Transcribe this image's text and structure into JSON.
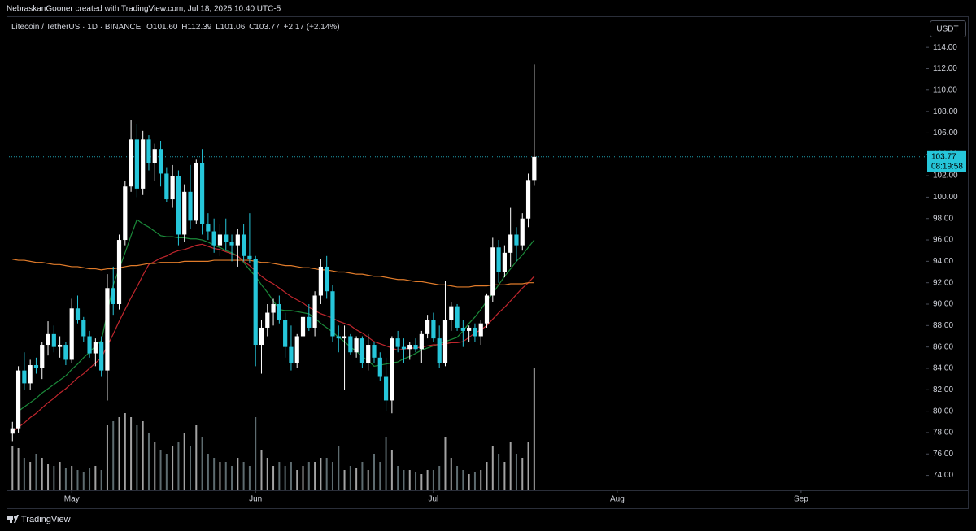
{
  "attribution": "NebraskanGooner created with TradingView.com, Jul 18, 2025 10:40 UTC-5",
  "legend": {
    "symbol": "Litecoin / TetherUS · 1D · BINANCE",
    "o_label": "O",
    "o": "101.60",
    "h_label": "H",
    "h": "112.39",
    "l_label": "L",
    "l": "101.06",
    "c_label": "C",
    "c": "103.77",
    "change": "+2.17 (+2.14%)"
  },
  "currency": "USDT",
  "countdown": "08:19:58",
  "brand": "TradingView",
  "chart_data": {
    "type": "candlestick",
    "up_color": "#ffffff",
    "down_color": "#26c6da",
    "xlim": [
      "2025-04-20",
      "2025-09-22"
    ],
    "xticks": [
      {
        "value": "2025-05-01",
        "label": "May"
      },
      {
        "value": "2025-06-01",
        "label": "Jun"
      },
      {
        "value": "2025-07-01",
        "label": "Jul"
      },
      {
        "value": "2025-08-01",
        "label": "Aug"
      },
      {
        "value": "2025-09-01",
        "label": "Sep"
      }
    ],
    "ylim": [
      72.6,
      116.9
    ],
    "yticks": [
      {
        "value": 74,
        "label": "74.00"
      },
      {
        "value": 76,
        "label": "76.00"
      },
      {
        "value": 78,
        "label": "78.00"
      },
      {
        "value": 80,
        "label": "80.00"
      },
      {
        "value": 82,
        "label": "82.00"
      },
      {
        "value": 84,
        "label": "84.00"
      },
      {
        "value": 86,
        "label": "86.00"
      },
      {
        "value": 88,
        "label": "88.00"
      },
      {
        "value": 90,
        "label": "90.00"
      },
      {
        "value": 92,
        "label": "92.00"
      },
      {
        "value": 94,
        "label": "94.00"
      },
      {
        "value": 96,
        "label": "96.00"
      },
      {
        "value": 98,
        "label": "98.00"
      },
      {
        "value": 100,
        "label": "100.00"
      },
      {
        "value": 102,
        "label": "102.00"
      },
      {
        "value": 104,
        "label": "104.00"
      },
      {
        "value": 106,
        "label": "106.00"
      },
      {
        "value": 108,
        "label": "108.00"
      },
      {
        "value": 110,
        "label": "110.00"
      },
      {
        "value": 112,
        "label": "112.00"
      },
      {
        "value": 114,
        "label": "114.00"
      }
    ],
    "grid": false,
    "x": [
      "2025-04-21",
      "2025-04-22",
      "2025-04-23",
      "2025-04-24",
      "2025-04-25",
      "2025-04-26",
      "2025-04-27",
      "2025-04-28",
      "2025-04-29",
      "2025-04-30",
      "2025-05-01",
      "2025-05-02",
      "2025-05-03",
      "2025-05-04",
      "2025-05-05",
      "2025-05-06",
      "2025-05-07",
      "2025-05-08",
      "2025-05-09",
      "2025-05-10",
      "2025-05-11",
      "2025-05-12",
      "2025-05-13",
      "2025-05-14",
      "2025-05-15",
      "2025-05-16",
      "2025-05-17",
      "2025-05-18",
      "2025-05-19",
      "2025-05-20",
      "2025-05-21",
      "2025-05-22",
      "2025-05-23",
      "2025-05-24",
      "2025-05-25",
      "2025-05-26",
      "2025-05-27",
      "2025-05-28",
      "2025-05-29",
      "2025-05-30",
      "2025-05-31",
      "2025-06-01",
      "2025-06-02",
      "2025-06-03",
      "2025-06-04",
      "2025-06-05",
      "2025-06-06",
      "2025-06-07",
      "2025-06-08",
      "2025-06-09",
      "2025-06-10",
      "2025-06-11",
      "2025-06-12",
      "2025-06-13",
      "2025-06-14",
      "2025-06-15",
      "2025-06-16",
      "2025-06-17",
      "2025-06-18",
      "2025-06-19",
      "2025-06-20",
      "2025-06-21",
      "2025-06-22",
      "2025-06-23",
      "2025-06-24",
      "2025-06-25",
      "2025-06-26",
      "2025-06-27",
      "2025-06-28",
      "2025-06-29",
      "2025-06-30",
      "2025-07-01",
      "2025-07-02",
      "2025-07-03",
      "2025-07-04",
      "2025-07-05",
      "2025-07-06",
      "2025-07-07",
      "2025-07-08",
      "2025-07-09",
      "2025-07-10",
      "2025-07-11",
      "2025-07-12",
      "2025-07-13",
      "2025-07-14",
      "2025-07-15",
      "2025-07-16",
      "2025-07-17",
      "2025-07-18"
    ],
    "open": [
      77.9,
      78.4,
      83.8,
      82.6,
      84.3,
      84.0,
      86.2,
      87.2,
      86.0,
      86.2,
      84.8,
      89.6,
      88.5,
      87.0,
      85.4,
      86.5,
      83.8,
      91.5,
      90.0,
      96.0,
      101.0,
      105.4,
      100.8,
      105.4,
      103.2,
      104.5,
      102.2,
      99.8,
      102.0,
      96.5,
      100.5,
      97.8,
      103.2,
      97.5,
      96.8,
      95.5,
      96.5,
      95.8,
      95.5,
      96.5,
      94.5,
      94.2,
      86.2,
      87.8,
      89.2,
      90.0,
      88.5,
      86.0,
      84.5,
      87.0,
      88.8,
      87.8,
      90.8,
      93.5,
      91.2,
      87.0,
      86.8,
      87.0,
      85.5,
      86.8,
      84.5,
      86.2,
      85.0,
      83.2,
      81.0,
      86.8,
      86.0,
      85.8,
      86.2,
      85.8,
      87.2,
      88.5,
      86.8,
      84.5,
      88.5,
      89.8,
      87.8,
      87.5,
      87.8,
      87.0,
      88.2,
      90.8,
      95.3,
      93.0,
      94.8,
      96.5,
      95.5,
      98.0,
      101.6
    ],
    "high": [
      79.0,
      84.2,
      85.5,
      84.8,
      85.0,
      86.5,
      88.4,
      88.0,
      87.0,
      86.5,
      90.5,
      90.8,
      88.8,
      87.5,
      86.8,
      87.0,
      92.8,
      93.5,
      96.5,
      101.5,
      107.2,
      106.8,
      106.2,
      105.8,
      105.0,
      105.2,
      102.8,
      103.0,
      102.5,
      101.2,
      103.0,
      103.5,
      104.5,
      98.5,
      98.0,
      97.5,
      98.0,
      96.5,
      97.0,
      97.5,
      98.5,
      94.5,
      88.5,
      90.0,
      90.5,
      90.8,
      89.2,
      88.0,
      87.2,
      89.0,
      90.0,
      91.2,
      94.2,
      94.5,
      91.8,
      88.0,
      88.0,
      87.2,
      87.0,
      87.0,
      87.2,
      86.5,
      85.5,
      85.0,
      87.0,
      87.5,
      86.8,
      86.5,
      86.8,
      87.5,
      89.0,
      89.2,
      88.0,
      92.2,
      90.2,
      90.0,
      88.5,
      88.0,
      88.2,
      88.5,
      91.0,
      96.2,
      96.0,
      95.5,
      99.0,
      97.2,
      98.5,
      102.2,
      112.39
    ],
    "low": [
      77.2,
      78.0,
      82.0,
      82.0,
      83.5,
      83.0,
      85.2,
      85.5,
      85.0,
      84.3,
      84.5,
      88.2,
      86.5,
      85.0,
      84.2,
      83.2,
      81.0,
      89.0,
      89.5,
      95.5,
      100.5,
      100.0,
      100.2,
      102.5,
      101.5,
      101.0,
      99.5,
      99.0,
      95.5,
      95.8,
      97.0,
      97.5,
      96.5,
      96.0,
      94.8,
      94.5,
      95.0,
      94.0,
      93.5,
      94.0,
      93.8,
      84.2,
      83.5,
      87.0,
      88.0,
      88.2,
      85.0,
      83.8,
      84.0,
      86.8,
      87.5,
      87.0,
      90.0,
      90.5,
      86.5,
      85.5,
      82.0,
      85.3,
      85.0,
      84.0,
      83.8,
      84.5,
      82.8,
      80.0,
      79.8,
      85.5,
      84.5,
      84.8,
      85.5,
      84.5,
      86.8,
      86.5,
      84.0,
      84.2,
      87.5,
      87.5,
      86.0,
      86.5,
      86.5,
      86.2,
      87.8,
      90.2,
      92.0,
      92.5,
      93.5,
      94.0,
      95.0,
      97.2,
      101.06
    ],
    "close": [
      78.4,
      83.8,
      82.6,
      84.3,
      84.0,
      86.2,
      87.2,
      86.0,
      86.2,
      84.8,
      89.6,
      88.5,
      87.0,
      85.4,
      86.5,
      83.8,
      91.5,
      90.0,
      96.0,
      101.0,
      105.4,
      100.8,
      105.4,
      103.2,
      104.5,
      102.2,
      99.8,
      102.0,
      96.5,
      100.5,
      97.8,
      103.2,
      97.5,
      96.8,
      95.5,
      96.5,
      95.8,
      95.5,
      96.5,
      94.5,
      94.2,
      86.2,
      87.8,
      89.2,
      90.0,
      88.5,
      86.0,
      84.5,
      87.0,
      88.8,
      87.8,
      90.8,
      93.5,
      91.2,
      87.0,
      86.8,
      87.0,
      85.5,
      86.8,
      84.5,
      86.2,
      85.0,
      83.2,
      81.0,
      86.8,
      86.0,
      85.8,
      86.2,
      85.8,
      87.2,
      88.5,
      86.8,
      84.5,
      88.5,
      89.8,
      87.8,
      87.5,
      87.8,
      87.0,
      88.2,
      90.8,
      95.3,
      93.0,
      94.8,
      96.5,
      95.5,
      98.0,
      101.6,
      103.77
    ],
    "volume": [
      5.5,
      5.2,
      4.0,
      3.5,
      4.5,
      4.0,
      3.2,
      3.0,
      3.5,
      2.8,
      3.0,
      2.5,
      2.2,
      2.8,
      3.0,
      2.5,
      8.0,
      8.5,
      9.0,
      9.5,
      9.0,
      8.0,
      8.5,
      7.0,
      6.0,
      5.0,
      4.5,
      5.5,
      6.0,
      7.0,
      5.5,
      8.0,
      6.5,
      4.5,
      4.0,
      3.5,
      3.5,
      3.0,
      4.0,
      3.5,
      3.0,
      9.0,
      5.0,
      4.0,
      3.0,
      3.5,
      3.0,
      3.5,
      2.5,
      3.0,
      3.5,
      3.5,
      4.0,
      4.0,
      3.5,
      5.5,
      2.5,
      3.0,
      2.8,
      3.5,
      2.5,
      4.5,
      3.5,
      6.5,
      5.0,
      3.0,
      2.5,
      2.5,
      2.2,
      2.0,
      2.5,
      2.5,
      3.0,
      6.5,
      4.0,
      3.0,
      2.5,
      2.0,
      2.2,
      2.5,
      3.5,
      5.5,
      4.5,
      3.5,
      6.0,
      4.5,
      4.0,
      6.0,
      15.0
    ],
    "moving_averages": [
      {
        "color": "#1b8a3a",
        "values": [
          null,
          80.0,
          80.4,
          80.8,
          81.2,
          81.7,
          82.1,
          82.5,
          82.9,
          83.3,
          83.9,
          84.4,
          85.0,
          85.5,
          86.1,
          86.6,
          89.2,
          91.8,
          93.3,
          94.8,
          96.4,
          97.9,
          97.5,
          97.2,
          96.8,
          96.4,
          96.3,
          96.3,
          96.2,
          96.2,
          96.1,
          96.1,
          96.0,
          95.8,
          95.5,
          95.3,
          95.0,
          94.8,
          94.5,
          93.9,
          93.2,
          92.6,
          91.8,
          91.1,
          90.3,
          89.5,
          89.4,
          89.4,
          89.3,
          89.2,
          89.1,
          88.7,
          88.2,
          87.8,
          87.4,
          86.9,
          86.5,
          86.0,
          85.6,
          85.1,
          84.7,
          84.2,
          84.3,
          84.4,
          84.5,
          84.6,
          84.9,
          85.1,
          85.4,
          85.7,
          85.9,
          86.1,
          86.3,
          86.5,
          86.7,
          86.9,
          87.5,
          88.2,
          88.8,
          89.5,
          90.3,
          91.0,
          91.8,
          92.6,
          93.3,
          94.0,
          94.6,
          95.3,
          96.0
        ]
      },
      {
        "color": "#c0262d",
        "values": [
          78.0,
          78.5,
          78.9,
          79.4,
          79.8,
          80.3,
          80.8,
          81.2,
          81.7,
          82.1,
          82.6,
          83.1,
          83.5,
          84.0,
          84.5,
          85.0,
          86.1,
          87.2,
          88.4,
          89.5,
          90.6,
          91.6,
          92.7,
          93.7,
          94.0,
          94.3,
          94.5,
          94.8,
          95.0,
          95.1,
          95.3,
          95.5,
          95.6,
          95.4,
          95.2,
          95.1,
          94.9,
          94.7,
          94.5,
          94.0,
          93.6,
          93.1,
          92.6,
          92.2,
          91.9,
          91.5,
          91.1,
          90.7,
          90.4,
          90.1,
          89.7,
          89.4,
          89.1,
          88.9,
          88.7,
          88.4,
          88.2,
          88.0,
          87.6,
          87.3,
          86.9,
          86.5,
          86.3,
          86.1,
          85.9,
          85.7,
          85.8,
          85.9,
          85.9,
          86.0,
          86.1,
          86.2,
          86.2,
          86.3,
          86.4,
          86.4,
          86.5,
          86.9,
          87.3,
          87.6,
          88.0,
          88.6,
          89.2,
          89.7,
          90.3,
          90.9,
          91.5,
          92.0,
          92.6
        ]
      },
      {
        "color": "#e07b2a",
        "values": [
          94.2,
          94.1,
          94.1,
          94.0,
          93.9,
          93.9,
          93.8,
          93.7,
          93.7,
          93.6,
          93.5,
          93.5,
          93.4,
          93.3,
          93.3,
          93.2,
          93.3,
          93.3,
          93.4,
          93.5,
          93.6,
          93.6,
          93.7,
          93.8,
          93.8,
          93.9,
          93.9,
          93.9,
          93.9,
          94.0,
          94.0,
          94.0,
          94.0,
          94.0,
          94.1,
          94.1,
          94.1,
          94.1,
          94.1,
          94.1,
          94.1,
          94.0,
          93.9,
          93.9,
          93.8,
          93.7,
          93.6,
          93.6,
          93.5,
          93.4,
          93.4,
          93.3,
          93.2,
          93.2,
          93.1,
          93.0,
          93.0,
          92.9,
          92.8,
          92.8,
          92.7,
          92.6,
          92.6,
          92.5,
          92.4,
          92.3,
          92.3,
          92.2,
          92.1,
          92.1,
          92.0,
          91.9,
          91.8,
          91.8,
          91.7,
          91.6,
          91.6,
          91.6,
          91.7,
          91.7,
          91.7,
          91.8,
          91.8,
          91.8,
          91.9,
          91.9,
          91.9,
          92.0,
          92.0
        ]
      }
    ]
  }
}
